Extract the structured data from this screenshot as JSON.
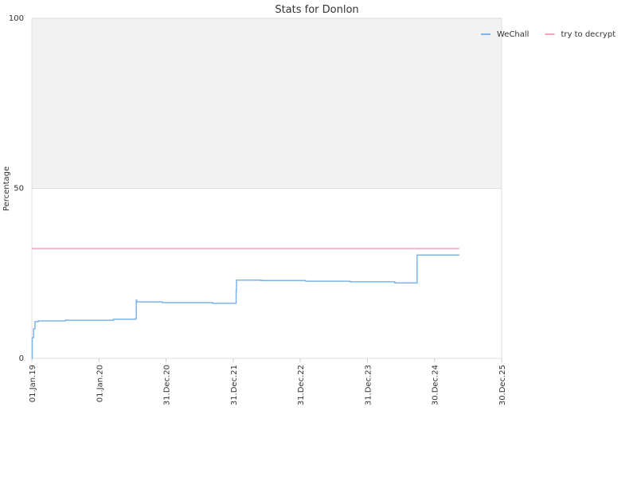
{
  "chart_data": {
    "type": "line",
    "step": true,
    "title": "Stats for Donlon",
    "y_label": "Percentage",
    "xlim": [
      "2019-01-01",
      "2025-12-30"
    ],
    "xticks": [
      {
        "value": "2019-01-01",
        "label": "01.Jan.19"
      },
      {
        "value": "2020-01-01",
        "label": "01.Jan.20"
      },
      {
        "value": "2020-12-31",
        "label": "31.Dec.20"
      },
      {
        "value": "2021-12-31",
        "label": "31.Dec.21"
      },
      {
        "value": "2022-12-31",
        "label": "31.Dec.22"
      },
      {
        "value": "2023-12-31",
        "label": "31.Dec.23"
      },
      {
        "value": "2024-12-30",
        "label": "30.Dec.24"
      },
      {
        "value": "2025-12-30",
        "label": "30.Dec.25"
      }
    ],
    "ylim": [
      0,
      100
    ],
    "yticks": [
      0,
      50,
      100
    ],
    "shaded_band": [
      50,
      100
    ],
    "legend": "top-right",
    "series": [
      {
        "name": "WeChall",
        "color": "#7cb5ec",
        "x": [
          "2019-01-01",
          "2019-01-03",
          "2019-01-10",
          "2019-01-18",
          "2019-02-05",
          "2019-07-01",
          "2020-03-20",
          "2020-07-17",
          "2020-07-22",
          "2020-07-25",
          "2020-12-11",
          "2021-09-10",
          "2022-01-16",
          "2022-01-18",
          "2022-06-01",
          "2023-01-29",
          "2023-09-28",
          "2024-05-28",
          "2024-09-26",
          "2025-05-14"
        ],
        "values": [
          0,
          6.1,
          8.7,
          10.8,
          11,
          11.2,
          11.5,
          11.7,
          17.1,
          16.6,
          16.4,
          16.2,
          19.9,
          23,
          22.9,
          22.7,
          22.5,
          22.2,
          30.4,
          30.4
        ]
      },
      {
        "name": "try to decrypt",
        "color": "#f7a1c4",
        "x": [
          "2019-01-01",
          "2025-05-14"
        ],
        "values": [
          32.3,
          32.3
        ]
      }
    ]
  }
}
